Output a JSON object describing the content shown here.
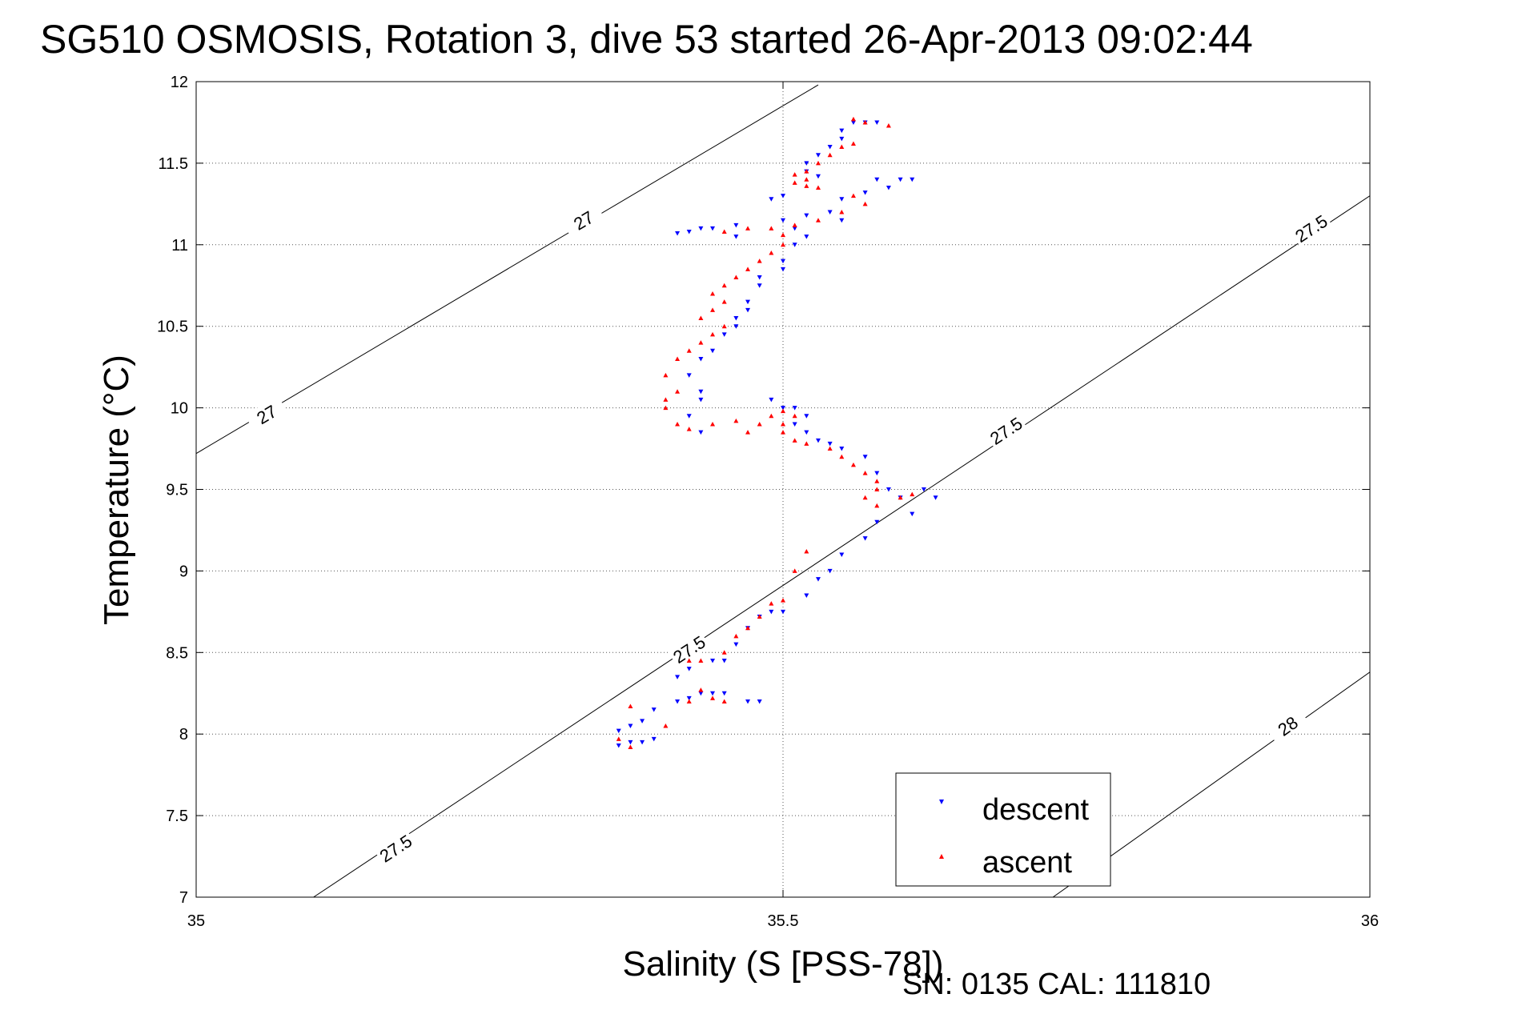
{
  "chart_data": {
    "type": "scatter",
    "title": "SG510 OSMOSIS, Rotation 3, dive 53 started 26-Apr-2013 09:02:44",
    "xlabel": "Salinity (S [PSS-78])",
    "ylabel": "Temperature (°C)",
    "footnote": "SN: 0135  CAL: 111810",
    "xlim": [
      35,
      36
    ],
    "ylim": [
      7,
      12
    ],
    "xticks": [
      35,
      35.5,
      36
    ],
    "xtick_labels": [
      "35",
      "35.5",
      "36"
    ],
    "yticks": [
      7,
      7.5,
      8,
      8.5,
      9,
      9.5,
      10,
      10.5,
      11,
      11.5,
      12
    ],
    "ytick_labels": [
      "7",
      "7.5",
      "8",
      "8.5",
      "9",
      "9.5",
      "10",
      "10.5",
      "11",
      "11.5",
      "12"
    ],
    "grid": true,
    "legend_position": "bottom-right",
    "density_contours": [
      {
        "label": "27",
        "line": [
          [
            35.0,
            9.72
          ],
          [
            35.53,
            11.98
          ]
        ],
        "label_at": [
          [
            35.33,
            11.15
          ],
          [
            35.06,
            9.96
          ]
        ]
      },
      {
        "label": "27.5",
        "line": [
          [
            35.1,
            7.0
          ],
          [
            36.0,
            11.3
          ]
        ],
        "label_at": [
          [
            35.17,
            7.3
          ],
          [
            35.42,
            8.52
          ],
          [
            35.69,
            9.86
          ],
          [
            35.95,
            11.1
          ]
        ]
      },
      {
        "label": "28",
        "line": [
          [
            35.73,
            7.0
          ],
          [
            36.0,
            8.38
          ]
        ],
        "label_at": [
          [
            35.93,
            8.05
          ]
        ]
      }
    ],
    "series": [
      {
        "name": "descent",
        "color": "#0000ff",
        "marker": "triangle-down",
        "points": [
          [
            35.56,
            11.75
          ],
          [
            35.57,
            11.75
          ],
          [
            35.58,
            11.75
          ],
          [
            35.55,
            11.7
          ],
          [
            35.55,
            11.65
          ],
          [
            35.54,
            11.6
          ],
          [
            35.53,
            11.55
          ],
          [
            35.52,
            11.5
          ],
          [
            35.52,
            11.45
          ],
          [
            35.53,
            11.42
          ],
          [
            35.58,
            11.4
          ],
          [
            35.6,
            11.4
          ],
          [
            35.61,
            11.4
          ],
          [
            35.59,
            11.35
          ],
          [
            35.57,
            11.32
          ],
          [
            35.55,
            11.28
          ],
          [
            35.5,
            11.3
          ],
          [
            35.49,
            11.28
          ],
          [
            35.54,
            11.2
          ],
          [
            35.52,
            11.18
          ],
          [
            35.55,
            11.15
          ],
          [
            35.5,
            11.15
          ],
          [
            35.46,
            11.12
          ],
          [
            35.43,
            11.1
          ],
          [
            35.41,
            11.07
          ],
          [
            35.42,
            11.08
          ],
          [
            35.44,
            11.1
          ],
          [
            35.46,
            11.05
          ],
          [
            35.51,
            11.1
          ],
          [
            35.52,
            11.05
          ],
          [
            35.51,
            11.0
          ],
          [
            35.5,
            10.9
          ],
          [
            35.5,
            10.85
          ],
          [
            35.48,
            10.8
          ],
          [
            35.48,
            10.75
          ],
          [
            35.47,
            10.65
          ],
          [
            35.47,
            10.6
          ],
          [
            35.46,
            10.55
          ],
          [
            35.46,
            10.5
          ],
          [
            35.45,
            10.45
          ],
          [
            35.44,
            10.35
          ],
          [
            35.43,
            10.3
          ],
          [
            35.42,
            10.2
          ],
          [
            35.43,
            10.1
          ],
          [
            35.43,
            10.05
          ],
          [
            35.42,
            9.95
          ],
          [
            35.43,
            9.85
          ],
          [
            35.49,
            10.05
          ],
          [
            35.5,
            10.0
          ],
          [
            35.51,
            10.0
          ],
          [
            35.52,
            9.95
          ],
          [
            35.51,
            9.9
          ],
          [
            35.52,
            9.85
          ],
          [
            35.53,
            9.8
          ],
          [
            35.54,
            9.78
          ],
          [
            35.55,
            9.75
          ],
          [
            35.57,
            9.7
          ],
          [
            35.58,
            9.6
          ],
          [
            35.59,
            9.5
          ],
          [
            35.6,
            9.45
          ],
          [
            35.62,
            9.5
          ],
          [
            35.63,
            9.45
          ],
          [
            35.61,
            9.35
          ],
          [
            35.58,
            9.3
          ],
          [
            35.57,
            9.2
          ],
          [
            35.55,
            9.1
          ],
          [
            35.54,
            9.0
          ],
          [
            35.53,
            8.95
          ],
          [
            35.52,
            8.85
          ],
          [
            35.5,
            8.75
          ],
          [
            35.49,
            8.75
          ],
          [
            35.48,
            8.72
          ],
          [
            35.47,
            8.65
          ],
          [
            35.46,
            8.55
          ],
          [
            35.45,
            8.45
          ],
          [
            35.44,
            8.45
          ],
          [
            35.42,
            8.4
          ],
          [
            35.41,
            8.35
          ],
          [
            35.43,
            8.25
          ],
          [
            35.44,
            8.25
          ],
          [
            35.45,
            8.25
          ],
          [
            35.47,
            8.2
          ],
          [
            35.48,
            8.2
          ],
          [
            35.42,
            8.22
          ],
          [
            35.41,
            8.2
          ],
          [
            35.39,
            8.15
          ],
          [
            35.38,
            8.08
          ],
          [
            35.37,
            8.05
          ],
          [
            35.36,
            8.02
          ],
          [
            35.37,
            7.95
          ],
          [
            35.38,
            7.95
          ],
          [
            35.39,
            7.97
          ],
          [
            35.36,
            7.93
          ]
        ]
      },
      {
        "name": "ascent",
        "color": "#ff0000",
        "marker": "triangle-up",
        "points": [
          [
            35.56,
            11.77
          ],
          [
            35.57,
            11.75
          ],
          [
            35.59,
            11.73
          ],
          [
            35.56,
            11.62
          ],
          [
            35.55,
            11.6
          ],
          [
            35.54,
            11.55
          ],
          [
            35.53,
            11.5
          ],
          [
            35.52,
            11.45
          ],
          [
            35.51,
            11.43
          ],
          [
            35.52,
            11.4
          ],
          [
            35.51,
            11.38
          ],
          [
            35.52,
            11.36
          ],
          [
            35.53,
            11.35
          ],
          [
            35.56,
            11.3
          ],
          [
            35.57,
            11.25
          ],
          [
            35.55,
            11.2
          ],
          [
            35.53,
            11.15
          ],
          [
            35.51,
            11.12
          ],
          [
            35.49,
            11.1
          ],
          [
            35.47,
            11.1
          ],
          [
            35.45,
            11.08
          ],
          [
            35.5,
            11.06
          ],
          [
            35.5,
            11.0
          ],
          [
            35.49,
            10.95
          ],
          [
            35.48,
            10.9
          ],
          [
            35.47,
            10.85
          ],
          [
            35.46,
            10.8
          ],
          [
            35.45,
            10.75
          ],
          [
            35.44,
            10.7
          ],
          [
            35.45,
            10.65
          ],
          [
            35.44,
            10.6
          ],
          [
            35.43,
            10.55
          ],
          [
            35.45,
            10.5
          ],
          [
            35.44,
            10.45
          ],
          [
            35.43,
            10.4
          ],
          [
            35.42,
            10.35
          ],
          [
            35.41,
            10.3
          ],
          [
            35.4,
            10.2
          ],
          [
            35.41,
            10.1
          ],
          [
            35.4,
            10.05
          ],
          [
            35.4,
            10.0
          ],
          [
            35.41,
            9.9
          ],
          [
            35.42,
            9.87
          ],
          [
            35.44,
            9.9
          ],
          [
            35.46,
            9.92
          ],
          [
            35.47,
            9.85
          ],
          [
            35.48,
            9.9
          ],
          [
            35.49,
            9.95
          ],
          [
            35.5,
            9.98
          ],
          [
            35.51,
            9.95
          ],
          [
            35.5,
            9.9
          ],
          [
            35.5,
            9.85
          ],
          [
            35.51,
            9.8
          ],
          [
            35.52,
            9.78
          ],
          [
            35.54,
            9.75
          ],
          [
            35.55,
            9.7
          ],
          [
            35.56,
            9.65
          ],
          [
            35.57,
            9.6
          ],
          [
            35.58,
            9.55
          ],
          [
            35.58,
            9.5
          ],
          [
            35.57,
            9.45
          ],
          [
            35.58,
            9.4
          ],
          [
            35.6,
            9.45
          ],
          [
            35.61,
            9.47
          ],
          [
            35.52,
            9.12
          ],
          [
            35.51,
            9.0
          ],
          [
            35.5,
            8.82
          ],
          [
            35.49,
            8.8
          ],
          [
            35.48,
            8.72
          ],
          [
            35.47,
            8.65
          ],
          [
            35.46,
            8.6
          ],
          [
            35.45,
            8.5
          ],
          [
            35.43,
            8.45
          ],
          [
            35.42,
            8.45
          ],
          [
            35.43,
            8.27
          ],
          [
            35.44,
            8.22
          ],
          [
            35.45,
            8.2
          ],
          [
            35.42,
            8.2
          ],
          [
            35.4,
            8.05
          ],
          [
            35.37,
            8.17
          ],
          [
            35.36,
            7.97
          ],
          [
            35.37,
            7.92
          ]
        ]
      }
    ]
  }
}
